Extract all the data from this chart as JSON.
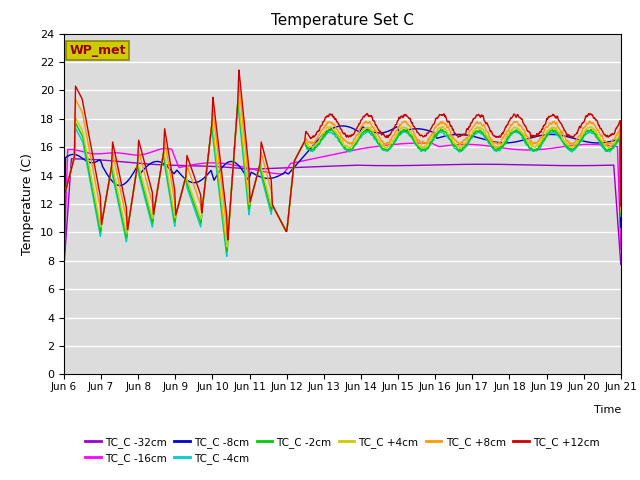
{
  "title": "Temperature Set C",
  "xlabel": "Time",
  "ylabel": "Temperature (C)",
  "ylim": [
    0,
    24
  ],
  "yticks": [
    0,
    2,
    4,
    6,
    8,
    10,
    12,
    14,
    16,
    18,
    20,
    22,
    24
  ],
  "x_labels": [
    "Jun 6",
    "Jun 7",
    "Jun 8",
    "Jun 9",
    "Jun 10",
    "Jun 11",
    "Jun 12",
    "Jun 13",
    "Jun 14",
    "Jun 15",
    "Jun 16",
    "Jun 17",
    "Jun 18",
    "Jun 19",
    "Jun 20",
    "Jun 21"
  ],
  "bg_color": "#dcdcdc",
  "fig_color": "#ffffff",
  "series": [
    {
      "label": "TC_C -32cm",
      "color": "#9900cc"
    },
    {
      "label": "TC_C -16cm",
      "color": "#ff00ff"
    },
    {
      "label": "TC_C -8cm",
      "color": "#0000cc"
    },
    {
      "label": "TC_C -4cm",
      "color": "#00cccc"
    },
    {
      "label": "TC_C -2cm",
      "color": "#00cc00"
    },
    {
      "label": "TC_C +4cm",
      "color": "#cccc00"
    },
    {
      "label": "TC_C +8cm",
      "color": "#ff9900"
    },
    {
      "label": "TC_C +12cm",
      "color": "#cc0000"
    }
  ],
  "wp_met_box_color": "#cccc00",
  "wp_met_text_color": "#990000"
}
